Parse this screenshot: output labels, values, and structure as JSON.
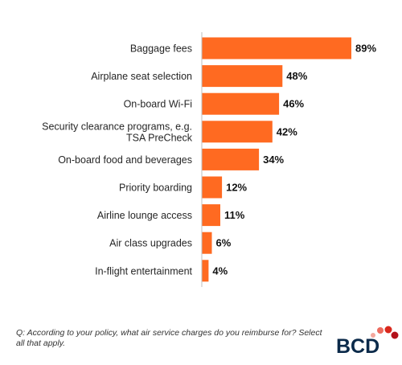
{
  "chart_data": {
    "type": "bar",
    "orientation": "horizontal",
    "categories": [
      [
        "Baggage fees"
      ],
      [
        "Airplane seat selection"
      ],
      [
        "On-board Wi-Fi"
      ],
      [
        "Security clearance programs, e.g.",
        "TSA PreCheck"
      ],
      [
        "On-board food and beverages"
      ],
      [
        "Priority boarding"
      ],
      [
        "Airline lounge access"
      ],
      [
        "Air class upgrades"
      ],
      [
        "In-flight entertainment"
      ]
    ],
    "values": [
      89,
      48,
      46,
      42,
      34,
      12,
      11,
      6,
      4
    ],
    "value_labels": [
      "89%",
      "48%",
      "46%",
      "42%",
      "34%",
      "12%",
      "11%",
      "6%",
      "4%"
    ],
    "xlim": [
      0,
      100
    ],
    "bar_color": "#ff6a21",
    "grid": false,
    "axis_line_color": "#bfbfbf"
  },
  "footnote": "Q: According to your policy, what air service charges do you reimburse for? Select all that apply.",
  "logo": {
    "text": "BCD",
    "text_color": "#0b2a4a",
    "dot_colors": [
      "#f4a79d",
      "#ec6b5e",
      "#d9281d",
      "#b3121b"
    ]
  }
}
